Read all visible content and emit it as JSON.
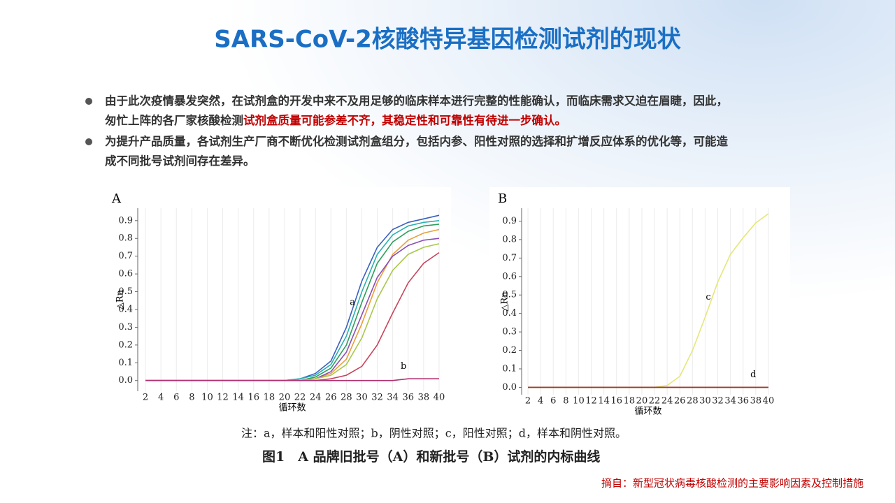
{
  "slide": {
    "title": "SARS-CoV-2核酸特异基因检测试剂的现状",
    "bullets": [
      {
        "lines": [
          [
            {
              "text": "由于此次疫情暴发突然，在试剂盒的开发中来不及用足够的临床样本进行完整的性能确认，而临床需求又迫在眉睫，因此，"
            }
          ],
          [
            {
              "text": "匆忙上阵的各厂家核酸检测"
            },
            {
              "text": "试剂盒质量可能参差不齐，其稳定性和可靠性有待进一步确认。",
              "emphasis": true
            }
          ]
        ]
      },
      {
        "lines": [
          [
            {
              "text": "为提升产品质量，各试剂生产厂商不断优化检测试剂盒组分，包括内参、阳性对照的选择和扩增反应体系的优化等，可能造"
            }
          ],
          [
            {
              "text": "成不同批号试剂间存在差异。"
            }
          ]
        ]
      }
    ],
    "figure_note": "注：a，样本和阳性对照；b，阴性对照；c，阳性对照；d，样本和阴性对照。",
    "figure_caption": "图1　A 品牌旧批号（A）和新批号（B）试剂的内标曲线",
    "source": "摘自：新型冠状病毒核酸检测的主要影响因素及控制措施"
  },
  "chart_data": [
    {
      "type": "line",
      "panel": "A",
      "ylabel": "△Rn",
      "xlabel": "循环数",
      "grid": true,
      "annotations": [
        "a",
        "b"
      ],
      "x": [
        2,
        4,
        6,
        8,
        10,
        12,
        14,
        16,
        18,
        20,
        22,
        24,
        26,
        28,
        30,
        32,
        34,
        36,
        38,
        40
      ],
      "xlim": [
        1,
        41
      ],
      "ylim": [
        -0.06,
        0.97
      ],
      "xticks": [
        2,
        4,
        6,
        8,
        10,
        12,
        14,
        16,
        18,
        20,
        22,
        24,
        26,
        28,
        30,
        32,
        34,
        36,
        38,
        40
      ],
      "yticks": [
        {
          "value": 0,
          "label": "0.0"
        },
        0.1,
        0.2,
        0.3,
        0.4,
        0.5,
        0.6,
        0.7,
        0.8,
        0.9
      ],
      "series": [
        {
          "color": "#3b5fc0",
          "values": [
            0,
            0,
            0,
            0,
            0,
            0,
            0,
            0,
            0,
            0,
            0.01,
            0.04,
            0.11,
            0.3,
            0.56,
            0.75,
            0.85,
            0.89,
            0.91,
            0.93
          ]
        },
        {
          "color": "#2e9e5a",
          "values": [
            0,
            0,
            0,
            0,
            0,
            0,
            0,
            0,
            0,
            0,
            0,
            0.02,
            0.07,
            0.2,
            0.44,
            0.66,
            0.78,
            0.84,
            0.87,
            0.88
          ]
        },
        {
          "color": "#2ab0b0",
          "values": [
            0,
            0,
            0,
            0,
            0,
            0,
            0,
            0,
            0,
            0,
            0.01,
            0.03,
            0.09,
            0.25,
            0.5,
            0.71,
            0.82,
            0.87,
            0.89,
            0.9
          ]
        },
        {
          "color": "#e8a03a",
          "values": [
            0,
            0,
            0,
            0,
            0,
            0,
            0,
            0,
            0,
            0,
            0,
            0.01,
            0.04,
            0.12,
            0.32,
            0.55,
            0.71,
            0.79,
            0.83,
            0.85
          ]
        },
        {
          "color": "#8a4fb5",
          "values": [
            0,
            0,
            0,
            0,
            0,
            0,
            0,
            0,
            0,
            0,
            0,
            0.01,
            0.05,
            0.16,
            0.37,
            0.58,
            0.7,
            0.76,
            0.79,
            0.8
          ]
        },
        {
          "color": "#c8445a",
          "values": [
            0,
            0,
            0,
            0,
            0,
            0,
            0,
            0,
            0,
            0,
            0,
            0,
            0.01,
            0.03,
            0.08,
            0.2,
            0.38,
            0.55,
            0.66,
            0.72
          ]
        },
        {
          "color": "#a8c84a",
          "values": [
            0,
            0,
            0,
            0,
            0,
            0,
            0,
            0,
            0,
            0,
            0,
            0.01,
            0.03,
            0.09,
            0.24,
            0.46,
            0.62,
            0.71,
            0.75,
            0.77
          ]
        },
        {
          "color": "#b03070",
          "values": [
            0,
            0,
            0,
            0,
            0,
            0,
            0,
            0,
            0,
            0,
            0,
            0,
            0,
            0,
            0,
            0,
            0,
            0.01,
            0.01,
            0.01
          ]
        }
      ]
    },
    {
      "type": "line",
      "panel": "B",
      "ylabel": "△Rn",
      "xlabel": "循环数",
      "grid": true,
      "annotations": [
        "c",
        "d"
      ],
      "x": [
        2,
        4,
        6,
        8,
        10,
        12,
        14,
        16,
        18,
        20,
        22,
        24,
        26,
        28,
        30,
        32,
        34,
        36,
        38,
        40
      ],
      "xlim": [
        1,
        41
      ],
      "ylim": [
        -0.04,
        0.97
      ],
      "xticks": [
        2,
        4,
        6,
        8,
        10,
        12,
        14,
        16,
        18,
        20,
        22,
        24,
        26,
        28,
        30,
        32,
        34,
        36,
        38,
        40
      ],
      "yticks": [
        {
          "value": 0,
          "label": "0.0"
        },
        0.1,
        0.2,
        0.3,
        0.4,
        0.5,
        0.6,
        0.7,
        0.8,
        0.9
      ],
      "series": [
        {
          "color": "#e6e67a",
          "values": [
            0,
            0,
            0,
            0,
            0,
            0,
            0,
            0,
            0,
            0,
            0,
            0.01,
            0.06,
            0.2,
            0.38,
            0.57,
            0.72,
            0.81,
            0.89,
            0.94
          ]
        },
        {
          "color": "#4a6a2a",
          "values": [
            0,
            0,
            0,
            0,
            0,
            0,
            0,
            0,
            0,
            0,
            0,
            0,
            0,
            0,
            0,
            0,
            0,
            0,
            0,
            0
          ]
        },
        {
          "color": "#c0282a",
          "values": [
            0,
            0,
            0,
            0,
            0,
            0,
            0,
            0,
            0,
            0,
            0,
            0,
            0,
            0,
            0,
            0,
            0,
            0,
            0,
            0
          ]
        }
      ]
    }
  ]
}
